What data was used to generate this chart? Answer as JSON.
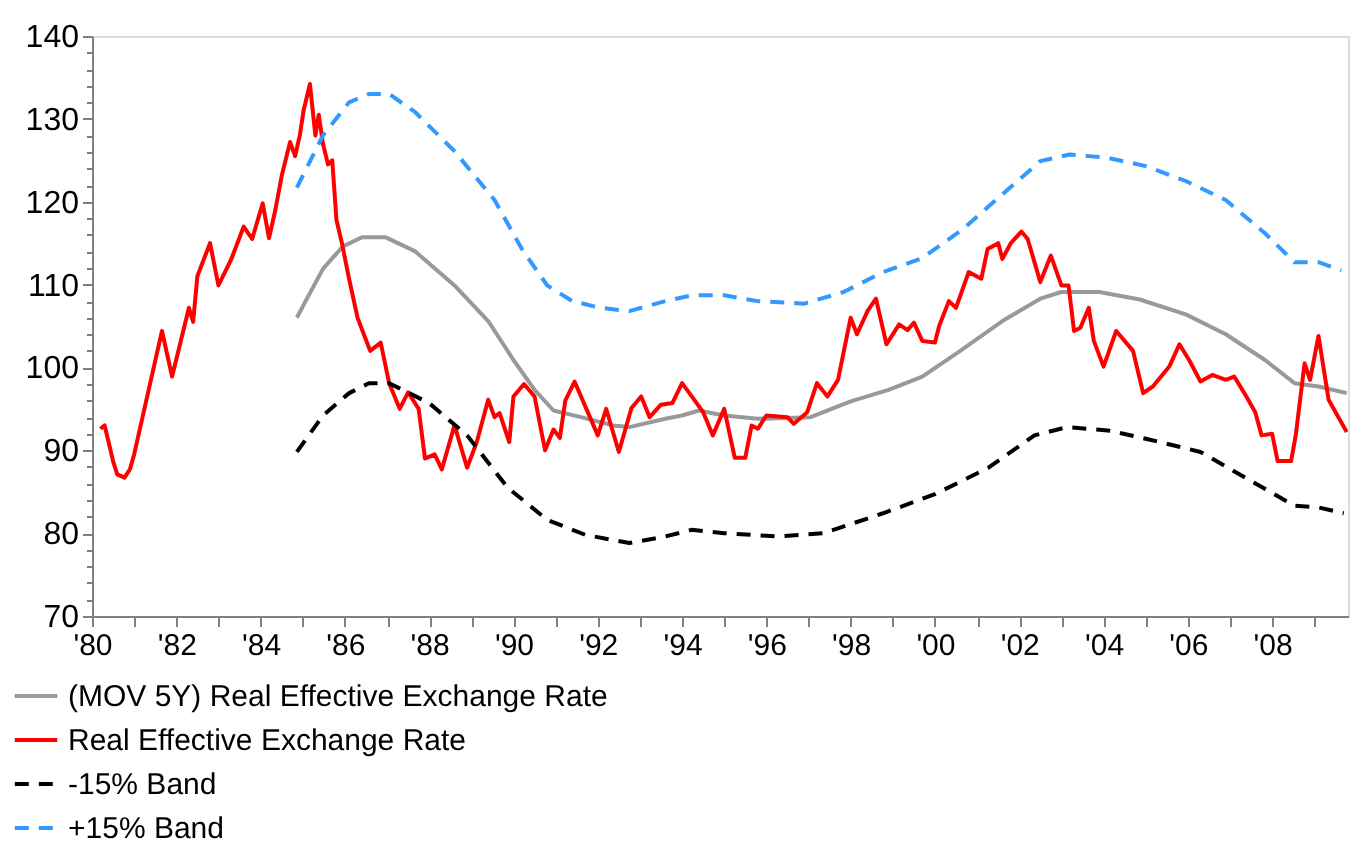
{
  "chart_data": {
    "type": "line",
    "xlim": [
      1980,
      2009.8
    ],
    "xticks": [
      {
        "value": 1980,
        "label": "'80"
      },
      {
        "value": 1981,
        "label": null
      },
      {
        "value": 1982,
        "label": "'82"
      },
      {
        "value": 1983,
        "label": null
      },
      {
        "value": 1984,
        "label": "'84"
      },
      {
        "value": 1985,
        "label": null
      },
      {
        "value": 1986,
        "label": "'86"
      },
      {
        "value": 1987,
        "label": null
      },
      {
        "value": 1988,
        "label": "'88"
      },
      {
        "value": 1989,
        "label": null
      },
      {
        "value": 1990,
        "label": "'90"
      },
      {
        "value": 1991,
        "label": null
      },
      {
        "value": 1992,
        "label": "'92"
      },
      {
        "value": 1993,
        "label": null
      },
      {
        "value": 1994,
        "label": "'94"
      },
      {
        "value": 1995,
        "label": null
      },
      {
        "value": 1996,
        "label": "'96"
      },
      {
        "value": 1997,
        "label": null
      },
      {
        "value": 1998,
        "label": "'98"
      },
      {
        "value": 1999,
        "label": null
      },
      {
        "value": 2000,
        "label": "'00"
      },
      {
        "value": 2001,
        "label": null
      },
      {
        "value": 2002,
        "label": "'02"
      },
      {
        "value": 2003,
        "label": null
      },
      {
        "value": 2004,
        "label": "'04"
      },
      {
        "value": 2005,
        "label": null
      },
      {
        "value": 2006,
        "label": "'06"
      },
      {
        "value": 2007,
        "label": null
      },
      {
        "value": 2008,
        "label": "'08"
      },
      {
        "value": 2009,
        "label": null
      }
    ],
    "ylim": [
      70,
      140
    ],
    "yticks": [
      70,
      {
        "value": 72,
        "label": null
      },
      {
        "value": 74,
        "label": null
      },
      {
        "value": 76,
        "label": null
      },
      {
        "value": 78,
        "label": null
      },
      80,
      {
        "value": 82,
        "label": null
      },
      {
        "value": 84,
        "label": null
      },
      {
        "value": 86,
        "label": null
      },
      {
        "value": 88,
        "label": null
      },
      90,
      {
        "value": 92,
        "label": null
      },
      {
        "value": 94,
        "label": null
      },
      {
        "value": 96,
        "label": null
      },
      {
        "value": 98,
        "label": null
      },
      100,
      {
        "value": 102,
        "label": null
      },
      {
        "value": 104,
        "label": null
      },
      {
        "value": 106,
        "label": null
      },
      {
        "value": 108,
        "label": null
      },
      110,
      {
        "value": 112,
        "label": null
      },
      {
        "value": 114,
        "label": null
      },
      {
        "value": 116,
        "label": null
      },
      {
        "value": 118,
        "label": null
      },
      120,
      {
        "value": 122,
        "label": null
      },
      {
        "value": 124,
        "label": null
      },
      {
        "value": 126,
        "label": null
      },
      {
        "value": 128,
        "label": null
      },
      130,
      {
        "value": 132,
        "label": null
      },
      {
        "value": 134,
        "label": null
      },
      {
        "value": 136,
        "label": null
      },
      {
        "value": 138,
        "label": null
      },
      140
    ],
    "grid": false,
    "legend": "bottom",
    "marker": "none",
    "series": [
      {
        "name": "(MOV 5Y) Real Effective Exchange Rate",
        "color": "#999999",
        "line_style": "solid",
        "x": [
          1984.86,
          1985.1,
          1985.48,
          1985.95,
          1986.4,
          1986.97,
          1987.67,
          1988.6,
          1989.4,
          1990.0,
          1990.5,
          1990.95,
          1991.6,
          1992.36,
          1992.75,
          1993.6,
          1994.0,
          1994.4,
          1995.0,
          1995.8,
          1997.05,
          1998.0,
          1998.9,
          1999.7,
          2000.6,
          2001.6,
          2002.5,
          2003.0,
          2003.9,
          2004.86,
          2005.95,
          2006.9,
          2007.83,
          2008.53,
          2009.1,
          2009.77
        ],
        "values": [
          106,
          108.3,
          111.9,
          114.6,
          115.7,
          115.7,
          114,
          109.9,
          105.6,
          100.9,
          97.3,
          94.8,
          94,
          93,
          92.8,
          93.8,
          94.2,
          94.8,
          94.2,
          93.8,
          94,
          95.9,
          97.3,
          98.9,
          102,
          105.6,
          108.3,
          109.1,
          109.1,
          108.2,
          106.4,
          104,
          100.9,
          98.1,
          97.7,
          96.9
        ]
      },
      {
        "name": "Real Effective Exchange Rate",
        "color": "#ff0000",
        "line_style": "solid",
        "x": [
          1980.2,
          1980.3,
          1980.5,
          1980.6,
          1980.77,
          1980.9,
          1981.0,
          1981.66,
          1981.9,
          1982.3,
          1982.4,
          1982.5,
          1982.8,
          1983.0,
          1983.3,
          1983.6,
          1983.8,
          1984.05,
          1984.2,
          1984.35,
          1984.5,
          1984.7,
          1984.82,
          1984.93,
          1985.02,
          1985.17,
          1985.3,
          1985.38,
          1985.48,
          1985.6,
          1985.7,
          1985.8,
          1985.93,
          1986.1,
          1986.3,
          1986.6,
          1986.85,
          1987.05,
          1987.3,
          1987.5,
          1987.75,
          1987.9,
          1988.13,
          1988.3,
          1988.6,
          1988.9,
          1989.13,
          1989.4,
          1989.55,
          1989.67,
          1989.9,
          1990.0,
          1990.25,
          1990.5,
          1990.75,
          1990.95,
          1991.1,
          1991.23,
          1991.45,
          1991.73,
          1992.0,
          1992.2,
          1992.5,
          1992.8,
          1993.03,
          1993.23,
          1993.5,
          1993.77,
          1994.0,
          1994.23,
          1994.5,
          1994.73,
          1995.0,
          1995.25,
          1995.5,
          1995.65,
          1995.8,
          1996.0,
          1996.5,
          1996.65,
          1996.97,
          1997.2,
          1997.45,
          1997.7,
          1998.0,
          1998.15,
          1998.4,
          1998.6,
          1998.85,
          1999.15,
          1999.35,
          1999.5,
          1999.7,
          2000.0,
          2000.1,
          2000.33,
          2000.5,
          2000.8,
          2001.1,
          2001.25,
          2001.5,
          2001.6,
          2001.8,
          2002.05,
          2002.2,
          2002.5,
          2002.75,
          2003.0,
          2003.17,
          2003.3,
          2003.45,
          2003.65,
          2003.77,
          2004.0,
          2004.3,
          2004.7,
          2004.94,
          2005.17,
          2005.56,
          2005.8,
          2006.03,
          2006.3,
          2006.58,
          2006.9,
          2007.1,
          2007.34,
          2007.6,
          2007.75,
          2008.0,
          2008.13,
          2008.45,
          2008.56,
          2008.77,
          2008.9,
          2009.1,
          2009.34,
          2009.77
        ],
        "values": [
          92.6,
          93,
          88.7,
          87.1,
          86.7,
          87.7,
          89.5,
          104.4,
          98.9,
          107.2,
          105.5,
          111,
          115,
          109.9,
          113,
          117,
          115.5,
          119.8,
          115.6,
          119,
          123.1,
          127.2,
          125.5,
          128,
          131,
          134.2,
          128,
          130.5,
          127,
          124.5,
          125,
          117.8,
          115,
          110.7,
          106,
          102,
          103,
          98.1,
          95,
          97,
          95,
          89,
          89.5,
          87.7,
          93,
          87.9,
          91,
          96.1,
          94,
          94.5,
          91,
          96.5,
          98,
          96.5,
          90,
          92.5,
          91.5,
          96,
          98.3,
          95,
          91.8,
          95,
          89.8,
          95.1,
          96.5,
          94,
          95.5,
          95.7,
          98.1,
          96.5,
          94.6,
          91.8,
          95,
          89.1,
          89.1,
          93,
          92.6,
          94.2,
          94,
          93.2,
          94.6,
          98.1,
          96.5,
          98.5,
          106,
          104,
          106.8,
          108.3,
          102.8,
          105.2,
          104.5,
          105.4,
          103.2,
          103,
          105,
          108,
          107.2,
          111.5,
          110.7,
          114.3,
          115,
          113.1,
          115,
          116.4,
          115.5,
          110.3,
          113.5,
          109.9,
          109.9,
          104.4,
          104.8,
          107.2,
          103.2,
          100.1,
          104.4,
          102,
          96.9,
          97.7,
          100.1,
          102.8,
          100.9,
          98.3,
          99.1,
          98.5,
          98.9,
          96.9,
          94.6,
          91.8,
          92,
          88.7,
          88.7,
          91.8,
          100.5,
          98.5,
          103.8,
          96.1,
          92.2
        ]
      },
      {
        "name": "-15% Band",
        "color": "#000000",
        "line_style": "dashed",
        "x": [
          1984.86,
          1985.48,
          1986.1,
          1986.57,
          1987.05,
          1988.0,
          1988.9,
          1989.86,
          1990.8,
          1991.7,
          1992.75,
          1993.6,
          1994.23,
          1995.0,
          1996.25,
          1997.36,
          1998.77,
          2000.0,
          2001.27,
          2002.36,
          2003.14,
          2004.1,
          2005.0,
          2006.3,
          2007.5,
          2008.53,
          2009.1,
          2009.7
        ],
        "values": [
          89.8,
          94.2,
          96.9,
          98.1,
          98.1,
          95.7,
          91.8,
          85.5,
          81.6,
          79.8,
          78.8,
          79.6,
          80.4,
          80,
          79.6,
          80,
          82.4,
          84.7,
          87.9,
          91.8,
          92.8,
          92.4,
          91.4,
          89.8,
          86.3,
          83.3,
          83.1,
          82.4
        ]
      },
      {
        "name": "+15% Band",
        "color": "#3399ff",
        "line_style": "dashed",
        "x": [
          1984.86,
          1985.48,
          1986.1,
          1986.57,
          1987.05,
          1987.67,
          1988.6,
          1989.55,
          1990.2,
          1990.8,
          1991.4,
          1992.05,
          1992.75,
          1993.6,
          1994.23,
          1995.0,
          1995.8,
          1996.9,
          1997.83,
          1998.77,
          1999.7,
          2000.64,
          2001.6,
          2002.5,
          2003.2,
          2004.1,
          2005.0,
          2005.95,
          2006.9,
          2007.83,
          2008.53,
          2009.1,
          2009.64
        ],
        "values": [
          121.7,
          128,
          132,
          133,
          133,
          130.8,
          126.1,
          120.2,
          114.3,
          109.9,
          108,
          107.2,
          106.8,
          108,
          108.7,
          108.7,
          108,
          107.7,
          109.1,
          111.5,
          113.2,
          116.6,
          120.9,
          124.9,
          125.7,
          125.3,
          124.3,
          122.5,
          120.2,
          116.2,
          112.7,
          112.7,
          111.7
        ]
      }
    ]
  }
}
